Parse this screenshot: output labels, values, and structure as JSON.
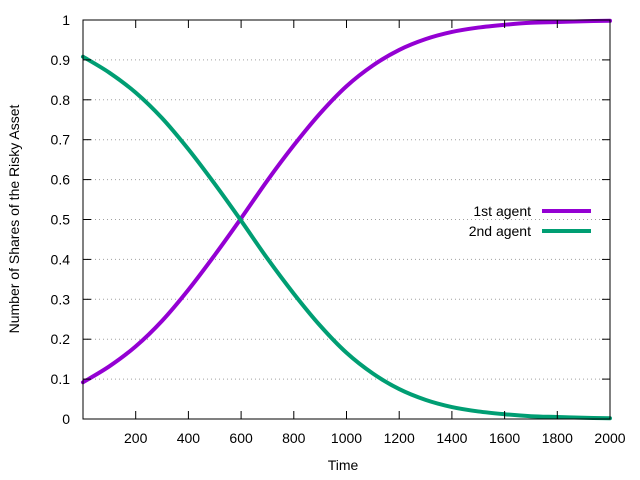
{
  "chart_data": {
    "type": "line",
    "xlabel": "Time",
    "ylabel": "Number of Shares of the Risky Asset",
    "xlim": [
      0,
      2000
    ],
    "ylim": [
      0,
      1
    ],
    "xticks": [
      200,
      400,
      600,
      800,
      1000,
      1200,
      1400,
      1600,
      1800,
      2000
    ],
    "xtick_labels": [
      "200",
      "400",
      "600",
      "800",
      "1000",
      "1200",
      "1400",
      "1600",
      "1800",
      "2000"
    ],
    "yticks": [
      0,
      0.1,
      0.2,
      0.3,
      0.4,
      0.5,
      0.6,
      0.7,
      0.8,
      0.9,
      1
    ],
    "ytick_labels": [
      "0",
      "0.1",
      "0.2",
      "0.3",
      "0.4",
      "0.5",
      "0.6",
      "0.7",
      "0.8",
      "0.9",
      "1"
    ],
    "grid": "horizontal-dotted",
    "legend_position": "right-center",
    "x": [
      0,
      100,
      200,
      300,
      400,
      500,
      600,
      700,
      800,
      900,
      1000,
      1100,
      1200,
      1300,
      1400,
      1500,
      1600,
      1700,
      1800,
      1900,
      2000
    ],
    "series": [
      {
        "name": "1st agent",
        "color": "#9400d3",
        "values": [
          0.092,
          0.132,
          0.182,
          0.246,
          0.324,
          0.411,
          0.503,
          0.598,
          0.686,
          0.766,
          0.834,
          0.886,
          0.925,
          0.952,
          0.97,
          0.981,
          0.988,
          0.993,
          0.995,
          0.997,
          0.998
        ]
      },
      {
        "name": "2nd agent",
        "color": "#009e73",
        "values": [
          0.908,
          0.868,
          0.818,
          0.754,
          0.676,
          0.589,
          0.497,
          0.402,
          0.314,
          0.234,
          0.166,
          0.114,
          0.075,
          0.048,
          0.03,
          0.019,
          0.012,
          0.007,
          0.005,
          0.003,
          0.002
        ]
      }
    ]
  }
}
